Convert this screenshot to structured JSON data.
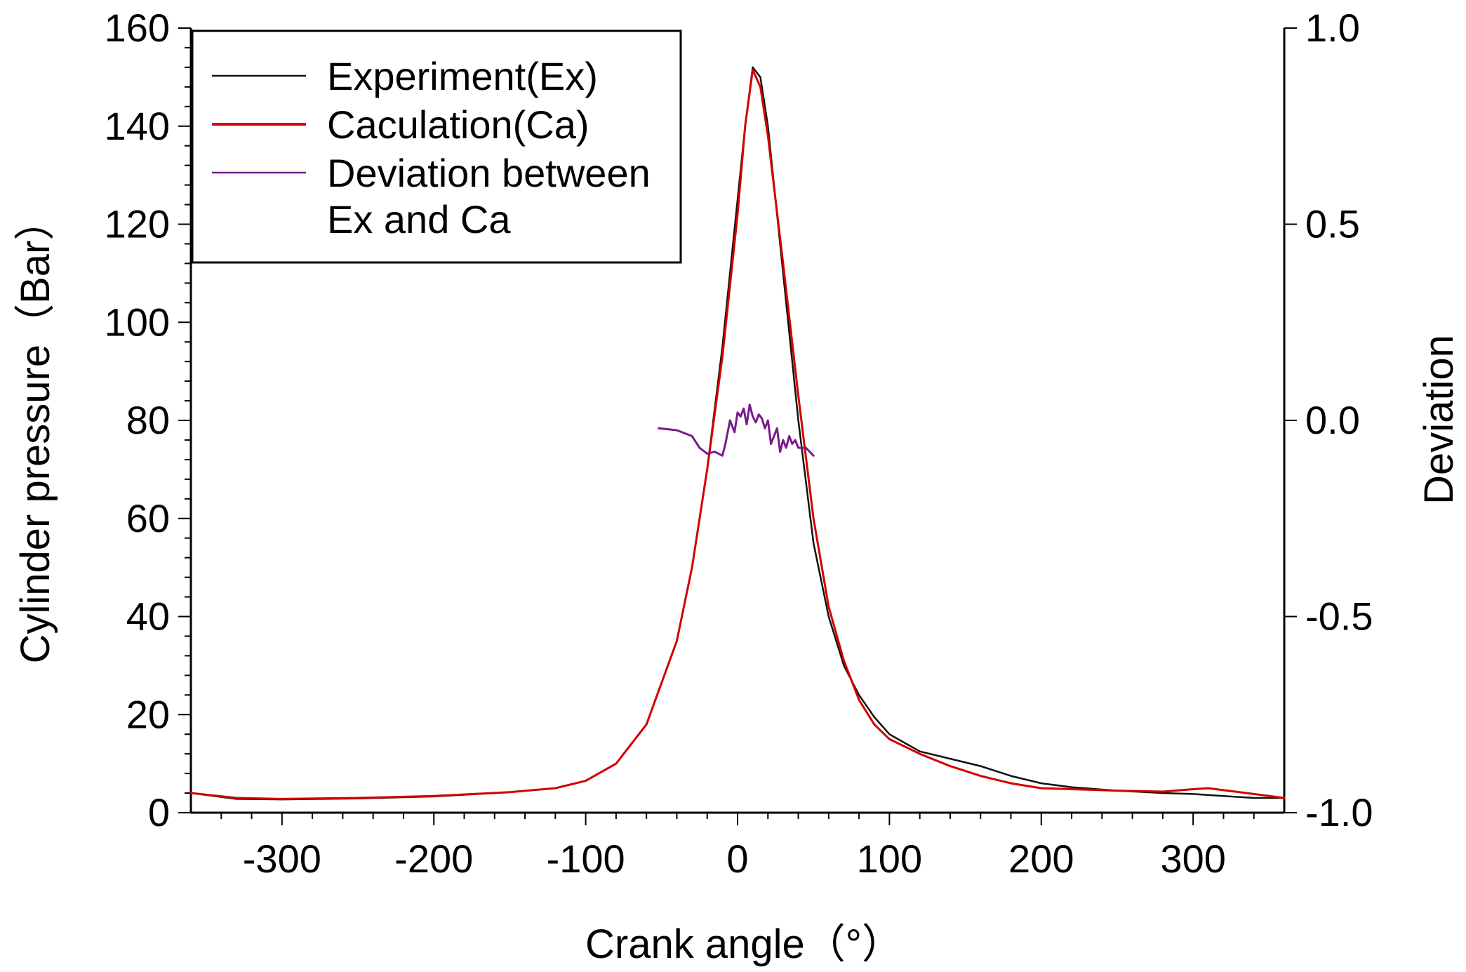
{
  "chart_data": {
    "type": "line",
    "title": "",
    "xlabel": "Crank angle（°）",
    "ylabel": "Cylinder pressure（Bar）",
    "y2label": "Deviation",
    "xlim": [
      -360,
      360
    ],
    "ylim": [
      0,
      160
    ],
    "y2lim": [
      -1.0,
      1.0
    ],
    "grid": false,
    "legend_position": "top-left",
    "xticks": [
      "-300",
      "-200",
      "-100",
      "0",
      "100",
      "200",
      "300"
    ],
    "xtick_values": [
      -300,
      -200,
      -100,
      0,
      100,
      200,
      300
    ],
    "yticks": [
      "0",
      "20",
      "40",
      "60",
      "80",
      "100",
      "120",
      "140",
      "160"
    ],
    "ytick_values": [
      0,
      20,
      40,
      60,
      80,
      100,
      120,
      140,
      160
    ],
    "y2ticks": [
      "-1.0",
      "-0.5",
      "0.0",
      "0.5",
      "1.0"
    ],
    "y2tick_values": [
      -1.0,
      -0.5,
      0.0,
      0.5,
      1.0
    ],
    "legend_lines": [
      "Experiment(Ex)",
      "Caculation(Ca)",
      "Deviation between",
      "Ex and Ca"
    ],
    "series": [
      {
        "name": "Experiment(Ex)",
        "axis": "left",
        "color": "#111111",
        "x": [
          -360,
          -330,
          -300,
          -250,
          -200,
          -150,
          -120,
          -100,
          -80,
          -60,
          -40,
          -30,
          -20,
          -10,
          0,
          5,
          10,
          15,
          20,
          30,
          40,
          50,
          60,
          70,
          80,
          90,
          100,
          120,
          140,
          160,
          180,
          200,
          220,
          250,
          280,
          300,
          320,
          340,
          360
        ],
        "y": [
          4,
          2.8,
          2.7,
          2.9,
          3.3,
          4.2,
          5,
          6.5,
          10,
          18,
          35,
          50,
          70,
          95,
          125,
          140,
          152,
          150,
          140,
          110,
          80,
          55,
          40,
          30,
          24,
          19.5,
          16,
          12.5,
          11,
          9.5,
          7.5,
          6,
          5.2,
          4.5,
          4,
          3.8,
          3.4,
          3,
          3
        ]
      },
      {
        "name": "Caculation(Ca)",
        "axis": "left",
        "color": "#d40000",
        "x": [
          -360,
          -330,
          -300,
          -250,
          -200,
          -150,
          -120,
          -100,
          -80,
          -60,
          -40,
          -30,
          -20,
          -10,
          0,
          5,
          10,
          15,
          20,
          30,
          40,
          50,
          60,
          70,
          80,
          90,
          100,
          120,
          140,
          160,
          180,
          200,
          220,
          250,
          280,
          300,
          310,
          320,
          340,
          360
        ],
        "y": [
          4,
          3,
          2.8,
          3,
          3.4,
          4.2,
          5,
          6.5,
          10,
          18,
          35,
          50,
          70,
          93,
          122,
          140,
          151.5,
          148,
          138,
          112,
          85,
          60,
          42,
          31,
          23,
          18,
          15,
          12,
          9.5,
          7.5,
          6,
          5,
          4.8,
          4.5,
          4.3,
          4.8,
          5,
          4.6,
          3.8,
          3
        ]
      },
      {
        "name": "Deviation between Ex and Ca",
        "axis": "right",
        "color": "#7a1a8c",
        "x": [
          -52,
          -40,
          -30,
          -25,
          -20,
          -15,
          -10,
          -8,
          -5,
          -2,
          0,
          2,
          4,
          6,
          8,
          10,
          12,
          14,
          16,
          18,
          20,
          22,
          24,
          26,
          28,
          30,
          32,
          34,
          36,
          38,
          40,
          45,
          50
        ],
        "y": [
          -0.02,
          -0.025,
          -0.04,
          -0.07,
          -0.085,
          -0.08,
          -0.09,
          -0.06,
          0.0,
          -0.03,
          0.02,
          0.01,
          0.03,
          -0.01,
          0.04,
          0.01,
          -0.005,
          0.015,
          0.005,
          -0.02,
          0.0,
          -0.06,
          -0.04,
          -0.02,
          -0.08,
          -0.05,
          -0.07,
          -0.04,
          -0.06,
          -0.05,
          -0.07,
          -0.07,
          -0.09
        ]
      }
    ]
  }
}
